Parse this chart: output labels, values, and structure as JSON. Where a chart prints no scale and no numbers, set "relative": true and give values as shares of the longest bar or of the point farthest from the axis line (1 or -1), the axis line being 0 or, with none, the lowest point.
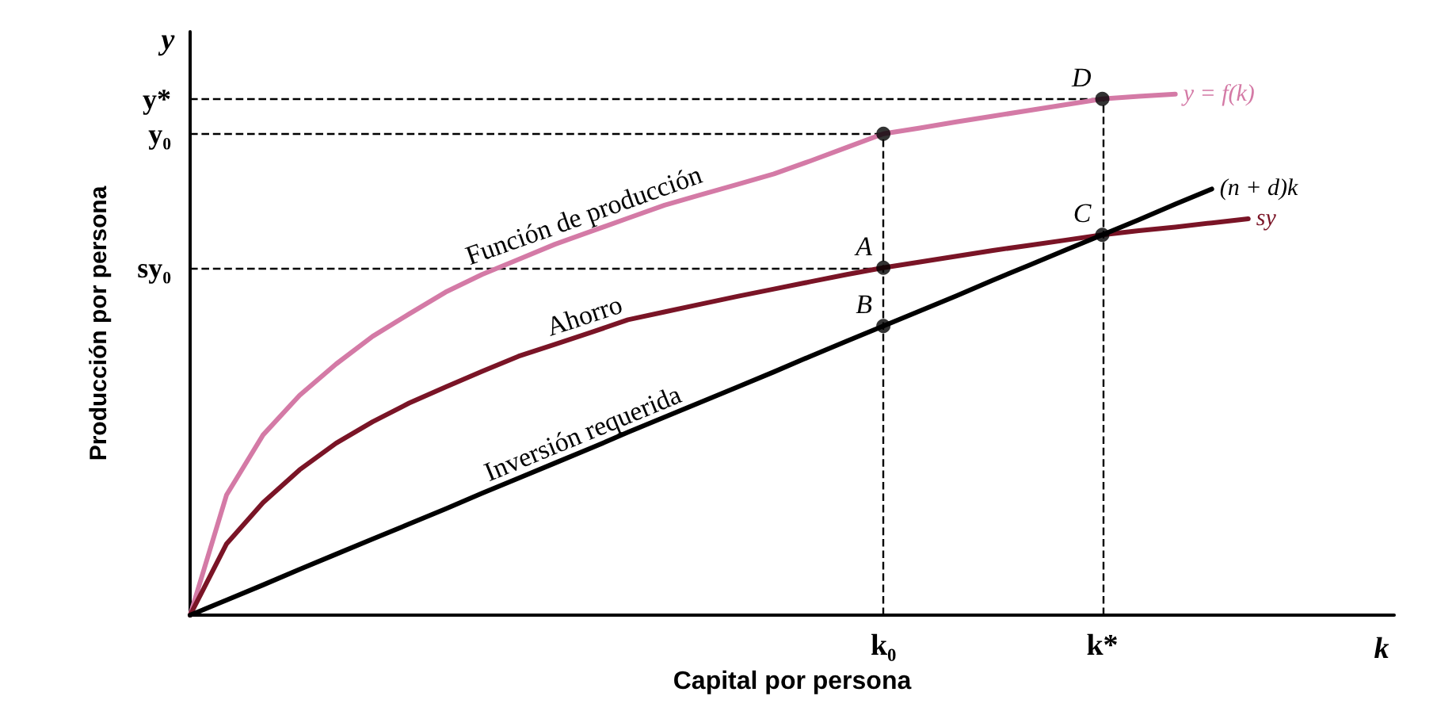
{
  "chart_data": {
    "type": "line",
    "relative": true,
    "xlabel": "Capital por persona",
    "ylabel": "Producción por persona",
    "categories": [
      null,
      null,
      null,
      null,
      null,
      null,
      null,
      null,
      null,
      null,
      null,
      null,
      null,
      null,
      null,
      null,
      null,
      null,
      null,
      "k₀",
      null,
      null,
      null,
      null,
      null,
      "k*",
      null,
      null,
      null,
      null,
      null,
      null,
      null,
      null
    ],
    "marker": "circle",
    "line_style": "solid",
    "legend": false,
    "grid": false,
    "series": [
      {
        "name": "y = f(k)",
        "color": "#d47aa6",
        "marker": "none",
        "values": [
          0,
          0.231,
          0.346,
          0.422,
          0.482,
          0.535,
          0.578,
          0.62,
          0.654,
          0.683,
          0.712,
          0.737,
          0.762,
          0.787,
          0.807,
          0.827,
          0.847,
          0.872,
          0.898,
          0.924,
          0.935,
          0.947,
          0.958,
          0.969,
          0.98,
          0.991,
          0.996,
          1,
          null,
          null,
          null,
          null,
          null,
          null
        ]
      },
      {
        "name": "sy",
        "color": "#7a1426",
        "marker": "none",
        "values": [
          0,
          0.137,
          0.216,
          0.279,
          0.33,
          0.371,
          0.407,
          0.438,
          0.468,
          0.497,
          0.52,
          0.543,
          0.567,
          0.582,
          0.597,
          0.612,
          0.626,
          0.64,
          0.654,
          0.667,
          0.678,
          0.689,
          0.7,
          0.71,
          0.72,
          0.73,
          0.738,
          0.745,
          0.753,
          0.761,
          null,
          null,
          null,
          null
        ]
      },
      {
        "name": "(n + d)k",
        "color": "#000000",
        "marker": "none",
        "values": [
          0,
          0.029,
          0.058,
          0.088,
          0.117,
          0.146,
          0.175,
          0.204,
          0.234,
          0.263,
          0.292,
          0.321,
          0.351,
          0.38,
          0.409,
          0.438,
          0.467,
          0.497,
          0.526,
          0.555,
          0.584,
          0.613,
          0.643,
          0.672,
          0.701,
          0.73,
          0.759,
          0.789,
          0.818,
          null,
          null,
          null,
          null,
          null
        ]
      },
      {
        "type": "scatter",
        "color": "#000000",
        "x": [
          "k₀",
          "k₀",
          "k₀",
          "k*",
          "k*"
        ],
        "values": [
          0.924,
          0.667,
          0.555,
          0.73,
          0.991
        ]
      }
    ],
    "ref_lines": [
      {
        "axis": "y",
        "value": 0.991,
        "label": "y*",
        "line_style": "dashed",
        "color": "#000000"
      },
      {
        "axis": "y",
        "value": 0.924,
        "label": "y₀",
        "line_style": "dashed",
        "color": "#000000"
      },
      {
        "axis": "y",
        "value": 0.667,
        "label": "sy₀",
        "line_style": "dashed",
        "color": "#000000"
      },
      {
        "axis": "x",
        "value": "k₀",
        "line_style": "dashed",
        "color": "#000000"
      },
      {
        "axis": "x",
        "value": "k*",
        "line_style": "dashed",
        "color": "#000000"
      }
    ],
    "annotations": [
      "k",
      "y",
      "Función de producción",
      "Ahorro",
      "Inversión requerida",
      {
        "text": "A",
        "x": "k₀",
        "y": 0.667
      },
      {
        "text": "B",
        "x": "k₀",
        "y": 0.555
      },
      {
        "text": "C",
        "x": "k*",
        "y": 0.73
      },
      {
        "text": "D",
        "x": "k*",
        "y": 0.991
      }
    ]
  }
}
